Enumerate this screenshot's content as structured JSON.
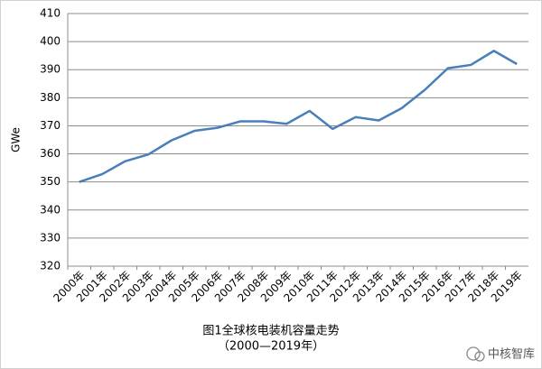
{
  "chart_data": {
    "type": "line",
    "title": "图1全球核电装机容量走势",
    "subtitle": "（2000—2019年）",
    "y_label": "GWe",
    "categories": [
      "2000年",
      "2001年",
      "2002年",
      "2003年",
      "2004年",
      "2005年",
      "2006年",
      "2007年",
      "2008年",
      "2009年",
      "2010年",
      "2011年",
      "2012年",
      "2013年",
      "2014年",
      "2015年",
      "2016年",
      "2017年",
      "2018年",
      "2019年"
    ],
    "values": [
      350,
      352.8,
      357.4,
      359.8,
      364.8,
      368.2,
      369.3,
      371.6,
      371.6,
      370.7,
      375.3,
      368.9,
      373.1,
      371.9,
      376.3,
      382.8,
      390.5,
      391.7,
      396.7,
      392
    ],
    "color": "#4a7ebb",
    "ylim": [
      320,
      410
    ],
    "yticks": [
      320,
      330,
      340,
      350,
      360,
      370,
      380,
      390,
      400,
      410
    ],
    "grid": true
  },
  "watermark": "中核智库"
}
